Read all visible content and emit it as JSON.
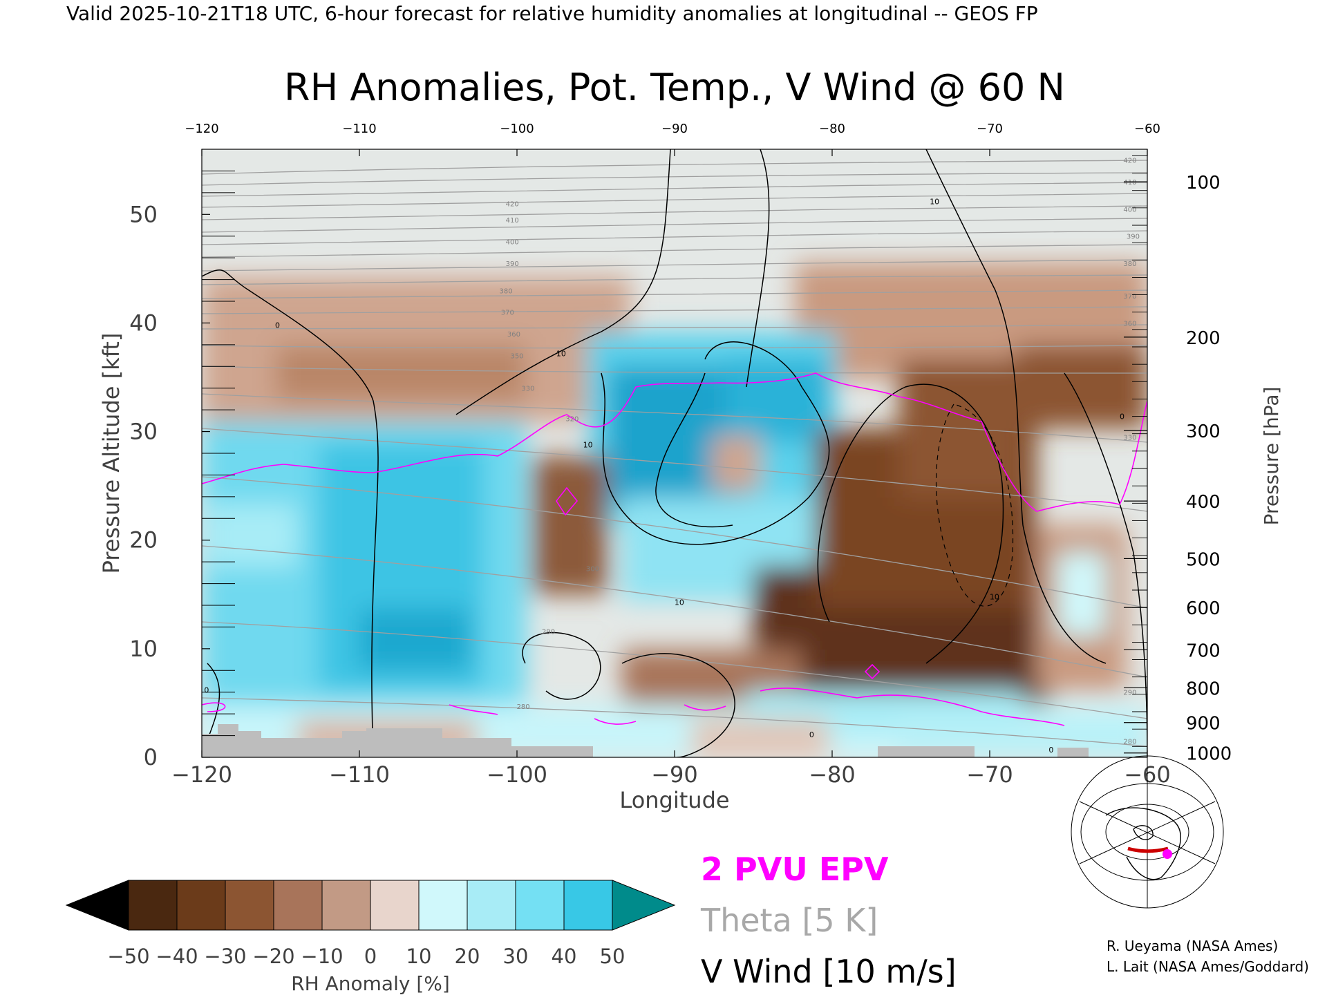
{
  "header": "Valid 2025-10-21T18 UTC, 6-hour forecast for relative humidity anomalies at longitudinal -- GEOS FP",
  "chart_data": {
    "type": "heatmap",
    "title": "RH Anomalies, Pot. Temp., V Wind @ 60 N",
    "xlabel": "Longitude",
    "ylabel_left": "Pressure Altitude [kft]",
    "ylabel_right": "Pressure [hPa]",
    "xlim": [
      -120,
      -60
    ],
    "ylim": [
      0,
      56
    ],
    "x_ticks": [
      "-120",
      "-110",
      "-100",
      "-90",
      "-80",
      "-70",
      "-60"
    ],
    "top_ticks": [
      "-120",
      "-110",
      "-100",
      "-90",
      "-80",
      "-70",
      "-60"
    ],
    "y_ticks": [
      "0",
      "10",
      "20",
      "30",
      "40",
      "50"
    ],
    "pressure_ticks": [
      {
        "label": "100",
        "alt": 53.0
      },
      {
        "label": "200",
        "alt": 38.7
      },
      {
        "label": "300",
        "alt": 30.1
      },
      {
        "label": "400",
        "alt": 23.6
      },
      {
        "label": "500",
        "alt": 18.3
      },
      {
        "label": "600",
        "alt": 13.8
      },
      {
        "label": "700",
        "alt": 9.9
      },
      {
        "label": "800",
        "alt": 6.4
      },
      {
        "label": "900",
        "alt": 3.2
      },
      {
        "label": "1000",
        "alt": 0.4
      }
    ],
    "theta_labels": [
      {
        "text": "420",
        "x": -100.3,
        "alt": 51.0
      },
      {
        "text": "410",
        "x": -100.3,
        "alt": 49.5
      },
      {
        "text": "400",
        "x": -100.3,
        "alt": 47.5
      },
      {
        "text": "390",
        "x": -100.3,
        "alt": 45.5
      },
      {
        "text": "380",
        "x": -100.7,
        "alt": 43.0
      },
      {
        "text": "370",
        "x": -100.6,
        "alt": 41.0
      },
      {
        "text": "360",
        "x": -100.2,
        "alt": 39.0
      },
      {
        "text": "350",
        "x": -100.0,
        "alt": 37.0
      },
      {
        "text": "330",
        "x": -99.3,
        "alt": 34.0
      },
      {
        "text": "320",
        "x": -96.5,
        "alt": 31.2
      },
      {
        "text": "300",
        "x": -95.2,
        "alt": 17.4
      },
      {
        "text": "290",
        "x": -98.0,
        "alt": 11.6
      },
      {
        "text": "280",
        "x": -99.6,
        "alt": 4.7
      },
      {
        "text": "420",
        "x": -61.1,
        "alt": 55.0
      },
      {
        "text": "410",
        "x": -61.1,
        "alt": 53.0
      },
      {
        "text": "400",
        "x": -61.1,
        "alt": 50.5
      },
      {
        "text": "390",
        "x": -60.9,
        "alt": 48.0
      },
      {
        "text": "380",
        "x": -61.1,
        "alt": 45.5
      },
      {
        "text": "370",
        "x": -61.1,
        "alt": 42.5
      },
      {
        "text": "360",
        "x": -61.1,
        "alt": 40.0
      },
      {
        "text": "330",
        "x": -61.1,
        "alt": 29.5
      },
      {
        "text": "290",
        "x": -61.1,
        "alt": 6.0
      },
      {
        "text": "280",
        "x": -61.1,
        "alt": 1.5
      }
    ],
    "wind_labels": [
      {
        "text": "0",
        "x": -115.2,
        "alt": 39.8
      },
      {
        "text": "10",
        "x": -97.2,
        "alt": 37.2
      },
      {
        "text": "10",
        "x": -95.5,
        "alt": 28.8
      },
      {
        "text": "10",
        "x": -89.7,
        "alt": 14.3
      },
      {
        "text": "10",
        "x": -73.5,
        "alt": 51.2
      },
      {
        "text": "10",
        "x": -69.7,
        "alt": 14.8
      },
      {
        "text": "0",
        "x": -61.6,
        "alt": 31.4
      },
      {
        "text": "0",
        "x": -119.7,
        "alt": 6.2
      },
      {
        "text": "0",
        "x": -81.3,
        "alt": 2.1
      },
      {
        "text": "0",
        "x": -66.1,
        "alt": 0.7
      }
    ],
    "legend_items": [
      {
        "label": "2 PVU EPV",
        "color": "#ff00ff"
      },
      {
        "label": "Theta [5 K]",
        "color": "#a8a8a8"
      },
      {
        "label": "V Wind [10 m/s]",
        "color": "#000000"
      }
    ],
    "colorbar": {
      "label": "RH Anomaly [%]",
      "ticks": [
        "-50",
        "-40",
        "-30",
        "-20",
        "-10",
        "0",
        "10",
        "20",
        "30",
        "40",
        "50"
      ],
      "colors": [
        "#4a2810",
        "#6b3b1a",
        "#8c5532",
        "#a8745a",
        "#c29a85",
        "#e8d5cc",
        "#d0f8fb",
        "#a8ecf6",
        "#74e0f3",
        "#38c8e6",
        "#1699c0"
      ],
      "low_color": "#000000",
      "high_color": "#008b8b"
    },
    "terrain_color": "#bdbdbd",
    "epv_color": "#ff00ff",
    "theta_color": "#a8a8a8",
    "wind_color": "#000000"
  },
  "credits": [
    "R. Ueyama (NASA Ames)",
    "L. Lait (NASA Ames/Goddard)"
  ]
}
